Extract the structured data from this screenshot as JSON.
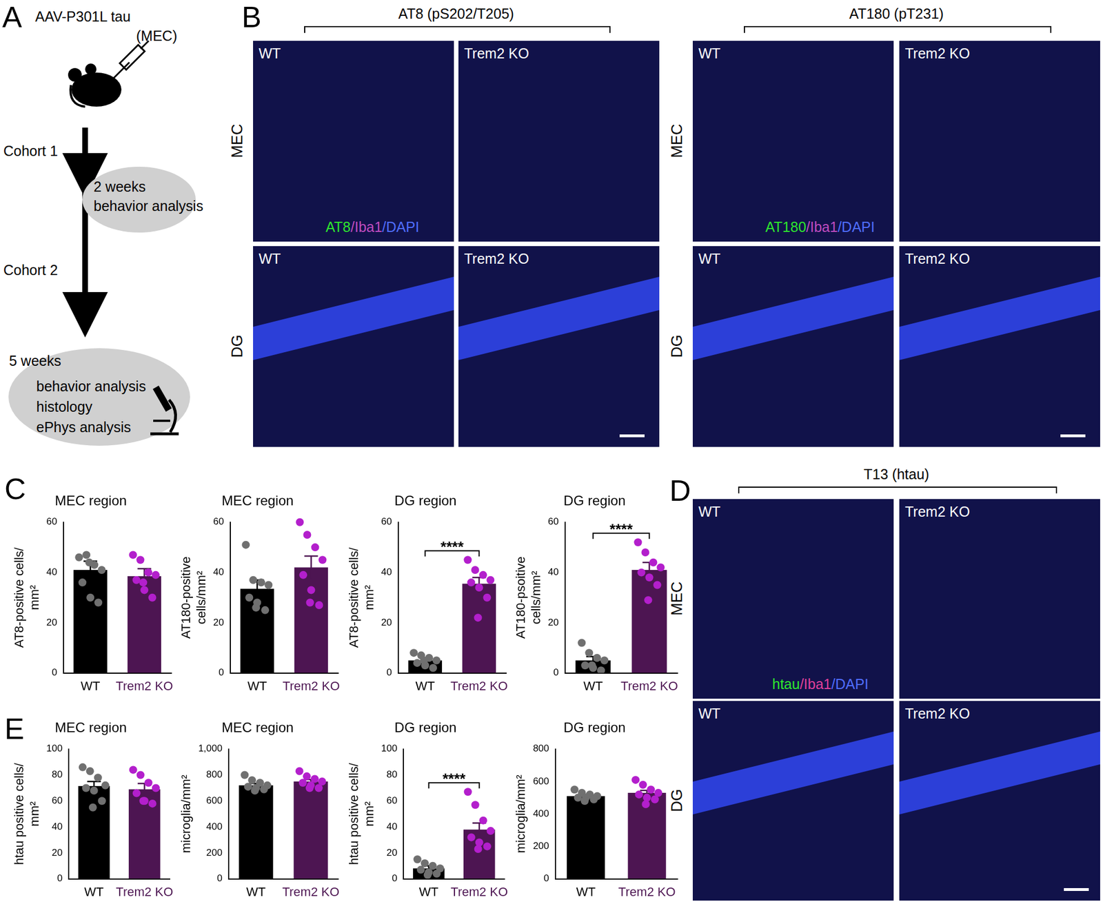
{
  "panel_labels": [
    "A",
    "B",
    "C",
    "D",
    "E"
  ],
  "panel_a": {
    "injection": [
      "AAV-P301L tau",
      "(MEC)"
    ],
    "cohort1": "Cohort 1",
    "step1": [
      "2 weeks",
      "behavior analysis"
    ],
    "cohort2": "Cohort 2",
    "step2_title": "5 weeks",
    "step2": [
      "behavior analysis",
      "histology",
      "ePhys analysis"
    ]
  },
  "panel_b": {
    "groups": [
      {
        "title": "AT8 (pS202/T205)",
        "stain": [
          {
            "text": "AT8",
            "color": "#2ee62e"
          },
          {
            "text": "/Iba1",
            "color": "#c04cc0"
          },
          {
            "text": "/DAPI",
            "color": "#4f6dff"
          }
        ]
      },
      {
        "title": "AT180 (pT231)",
        "stain": [
          {
            "text": "AT180",
            "color": "#2ee62e"
          },
          {
            "text": "/Iba1",
            "color": "#c04cc0"
          },
          {
            "text": "/DAPI",
            "color": "#4f6dff"
          }
        ]
      }
    ],
    "genotypes": [
      "WT",
      "Trem2 KO"
    ],
    "regions": [
      "MEC",
      "DG"
    ]
  },
  "panel_d": {
    "title": "T13 (htau)",
    "stain": [
      {
        "text": "htau",
        "color": "#2ee62e"
      },
      {
        "text": "/Iba1",
        "color": "#e0409a"
      },
      {
        "text": "/DAPI",
        "color": "#4f6dff"
      }
    ],
    "genotypes": [
      "WT",
      "Trem2 KO"
    ],
    "regions": [
      "MEC",
      "DG"
    ]
  },
  "chart_data": [
    {
      "type": "bar",
      "title": "MEC region",
      "y_label": [
        "AT8-positive cells/",
        "mm²"
      ],
      "categories": [
        "WT",
        "Trem2 KO"
      ],
      "values": [
        41,
        38.5
      ],
      "errors": [
        3.5,
        3
      ],
      "points": [
        [
          46,
          47,
          43,
          41,
          36,
          30,
          28,
          44
        ],
        [
          47,
          45,
          40,
          39,
          37,
          33,
          30,
          36
        ]
      ],
      "colors": [
        "#000000",
        "#4d1552"
      ],
      "ylim": [
        0,
        60
      ],
      "yticks": [
        0,
        20,
        40,
        60
      ]
    },
    {
      "type": "bar",
      "title": "MEC region",
      "y_label": [
        "AT180-positive",
        "cells/mm²"
      ],
      "categories": [
        "WT",
        "Trem2 KO"
      ],
      "values": [
        33.5,
        42
      ],
      "errors": [
        3.5,
        4.5
      ],
      "points": [
        [
          51,
          37,
          36,
          35,
          30,
          28,
          25,
          26
        ],
        [
          60,
          55,
          50,
          45,
          39,
          33,
          27,
          28
        ]
      ],
      "colors": [
        "#000000",
        "#4d1552"
      ],
      "ylim": [
        0,
        60
      ],
      "yticks": [
        0,
        20,
        40,
        60
      ]
    },
    {
      "type": "bar",
      "title": "DG region",
      "y_label": [
        "AT8-positive cells/",
        "mm²"
      ],
      "categories": [
        "WT",
        "Trem2 KO"
      ],
      "values": [
        5,
        35.5
      ],
      "errors": [
        1.2,
        2.5
      ],
      "points": [
        [
          8,
          7,
          6,
          5,
          4,
          3,
          2,
          5
        ],
        [
          45,
          41,
          39,
          37,
          36,
          34,
          30,
          22
        ]
      ],
      "colors": [
        "#000000",
        "#4d1552"
      ],
      "ylim": [
        0,
        60
      ],
      "yticks": [
        0,
        20,
        40,
        60
      ],
      "annotation": "****"
    },
    {
      "type": "bar",
      "title": "DG region",
      "y_label": [
        "AT180-psoitive",
        "cells/mm²"
      ],
      "categories": [
        "WT",
        "Trem2 KO"
      ],
      "values": [
        5,
        41
      ],
      "errors": [
        1.5,
        3
      ],
      "points": [
        [
          12,
          8,
          6,
          5,
          3,
          2,
          1,
          3
        ],
        [
          52,
          48,
          44,
          42,
          40,
          38,
          35,
          29
        ]
      ],
      "colors": [
        "#000000",
        "#4d1552"
      ],
      "ylim": [
        0,
        60
      ],
      "yticks": [
        0,
        20,
        40,
        60
      ],
      "annotation": "****"
    },
    {
      "type": "bar",
      "title": "MEC region",
      "y_label": [
        "htau positive cells/",
        "mm²"
      ],
      "categories": [
        "WT",
        "Trem2 KO"
      ],
      "values": [
        71.5,
        69
      ],
      "errors": [
        3.5,
        4.5
      ],
      "points": [
        [
          86,
          83,
          78,
          72,
          70,
          68,
          60,
          55
        ],
        [
          84,
          80,
          74,
          70,
          66,
          60,
          58,
          60
        ]
      ],
      "colors": [
        "#000000",
        "#4d1552"
      ],
      "ylim": [
        0,
        100
      ],
      "yticks": [
        0,
        20,
        40,
        60,
        80,
        100
      ]
    },
    {
      "type": "bar",
      "title": "MEC region",
      "y_label": [
        "microglia/mm²"
      ],
      "categories": [
        "WT",
        "Trem2 KO"
      ],
      "values": [
        720,
        750
      ],
      "errors": [
        15,
        15
      ],
      "points": [
        [
          800,
          760,
          740,
          720,
          710,
          700,
          690,
          680
        ],
        [
          830,
          790,
          770,
          750,
          740,
          720,
          700,
          700
        ]
      ],
      "colors": [
        "#000000",
        "#4d1552"
      ],
      "ylim": [
        0,
        1000
      ],
      "yticks": [
        0,
        200,
        400,
        600,
        800,
        1000
      ]
    },
    {
      "type": "bar",
      "title": "DG region",
      "y_label": [
        "htau positive cells/",
        "mm²"
      ],
      "categories": [
        "WT",
        "Trem2 KO"
      ],
      "values": [
        8,
        38
      ],
      "errors": [
        2,
        5
      ],
      "points": [
        [
          15,
          12,
          10,
          8,
          7,
          5,
          4,
          3
        ],
        [
          67,
          57,
          45,
          37,
          32,
          28,
          25,
          23
        ]
      ],
      "colors": [
        "#000000",
        "#4d1552"
      ],
      "ylim": [
        0,
        100
      ],
      "yticks": [
        0,
        20,
        40,
        60,
        80,
        100
      ],
      "annotation": "****"
    },
    {
      "type": "bar",
      "title": "DG region",
      "y_label": [
        "microglia/mm²"
      ],
      "categories": [
        "WT",
        "Trem2 KO"
      ],
      "values": [
        510,
        530
      ],
      "errors": [
        10,
        15
      ],
      "points": [
        [
          550,
          530,
          520,
          510,
          500,
          500,
          490,
          480
        ],
        [
          610,
          580,
          550,
          530,
          520,
          500,
          490,
          460
        ]
      ],
      "colors": [
        "#000000",
        "#4d1552"
      ],
      "ylim": [
        0,
        800
      ],
      "yticks": [
        0,
        200,
        400,
        600,
        800
      ]
    }
  ]
}
